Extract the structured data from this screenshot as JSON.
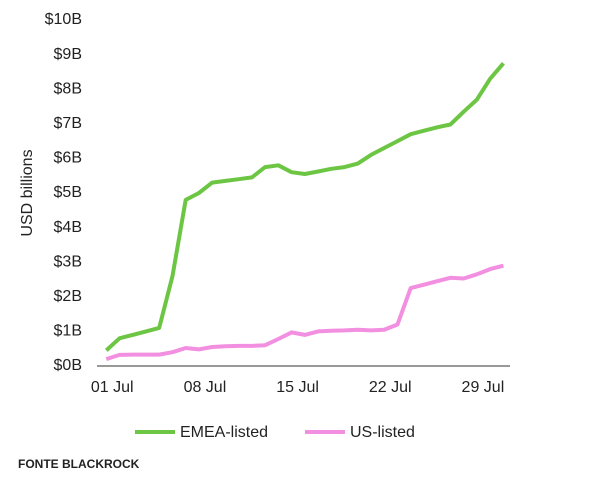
{
  "chart_data": {
    "type": "line",
    "y_label": "USD billions",
    "source": "FONTE BLACKROCK",
    "x": [
      1,
      2,
      3,
      4,
      5,
      6,
      7,
      8,
      9,
      10,
      11,
      12,
      13,
      14,
      15,
      16,
      17,
      18,
      19,
      20,
      21,
      22,
      23,
      24,
      25,
      26,
      27,
      28,
      29,
      30,
      31
    ],
    "xlim": [
      0.3,
      31.5
    ],
    "xticks": [
      {
        "value": 1,
        "label": "01 Jul"
      },
      {
        "value": 8,
        "label": "08 Jul"
      },
      {
        "value": 15,
        "label": "15 Jul"
      },
      {
        "value": 22,
        "label": "22 Jul"
      },
      {
        "value": 29,
        "label": "29 Jul"
      }
    ],
    "ylim": [
      0,
      10
    ],
    "yticks": [
      {
        "value": 0,
        "label": "$0B"
      },
      {
        "value": 1,
        "label": "$1B"
      },
      {
        "value": 2,
        "label": "$2B"
      },
      {
        "value": 3,
        "label": "$3B"
      },
      {
        "value": 4,
        "label": "$4B"
      },
      {
        "value": 5,
        "label": "$5B"
      },
      {
        "value": 6,
        "label": "$6B"
      },
      {
        "value": 7,
        "label": "$7B"
      },
      {
        "value": 8,
        "label": "$8B"
      },
      {
        "value": 9,
        "label": "$9B"
      },
      {
        "value": 10,
        "label": "$10B"
      }
    ],
    "grid": false,
    "series": [
      {
        "name": "EMEA-listed",
        "color": "#6cc644",
        "values": [
          0.45,
          0.8,
          0.9,
          1.0,
          1.1,
          2.6,
          4.8,
          5.0,
          5.3,
          5.35,
          5.4,
          5.45,
          5.75,
          5.8,
          5.6,
          5.55,
          5.62,
          5.7,
          5.75,
          5.85,
          6.1,
          6.3,
          6.5,
          6.7,
          6.8,
          6.9,
          6.98,
          7.35,
          7.7,
          8.3,
          8.75
        ]
      },
      {
        "name": "US-listed",
        "color": "#f28fe0",
        "values": [
          0.2,
          0.32,
          0.33,
          0.33,
          0.33,
          0.4,
          0.52,
          0.48,
          0.55,
          0.57,
          0.58,
          0.58,
          0.6,
          0.78,
          0.97,
          0.9,
          1.0,
          1.02,
          1.03,
          1.05,
          1.03,
          1.05,
          1.2,
          2.25,
          2.35,
          2.45,
          2.55,
          2.53,
          2.65,
          2.8,
          2.9
        ]
      }
    ]
  }
}
